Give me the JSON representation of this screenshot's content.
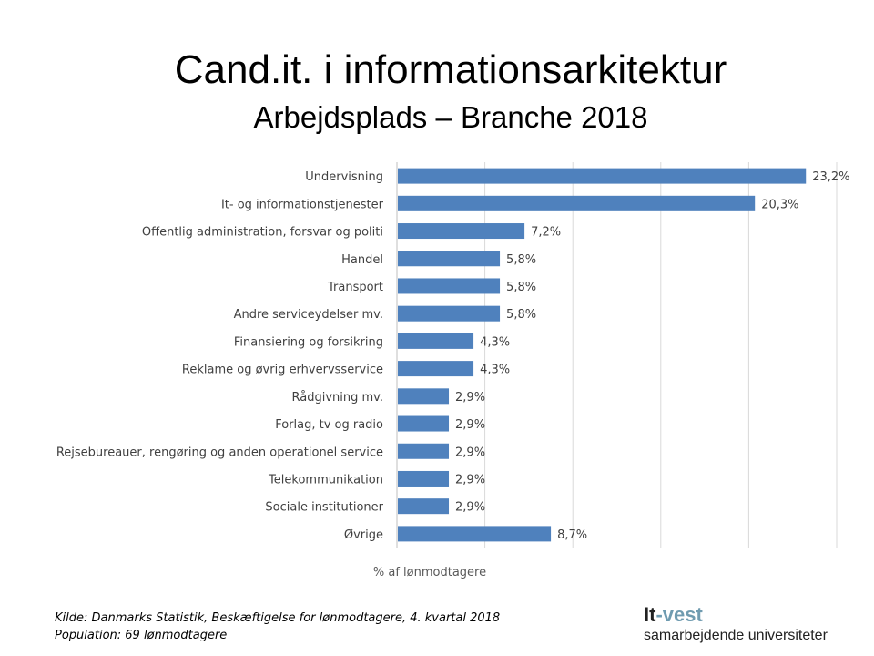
{
  "header": {
    "title": "Cand.it. i informationsarkitektur",
    "subtitle": "Arbejdsplads – Branche 2018"
  },
  "chart_data": {
    "type": "bar",
    "orientation": "horizontal",
    "categories": [
      "Undervisning",
      "It- og informationstjenester",
      "Offentlig administration, forsvar og politi",
      "Handel",
      "Transport",
      "Andre serviceydelser  mv.",
      "Finansiering og forsikring",
      "Reklame og øvrig erhvervsservice",
      "Rådgivning mv.",
      "Forlag, tv og radio",
      "Rejsebureauer, rengøring og anden operationel service",
      "Telekommunikation",
      "Sociale institutioner",
      "Øvrige"
    ],
    "values": [
      23.2,
      20.3,
      7.2,
      5.8,
      5.8,
      5.8,
      4.3,
      4.3,
      2.9,
      2.9,
      2.9,
      2.9,
      2.9,
      8.7
    ],
    "data_labels": [
      "23,2%",
      "20,3%",
      "7,2%",
      "5,8%",
      "5,8%",
      "5,8%",
      "4,3%",
      "4,3%",
      "2,9%",
      "2,9%",
      "2,9%",
      "2,9%",
      "2,9%",
      "8,7%"
    ],
    "xlabel": "% af lønmodtagere",
    "xlim": [
      0,
      25
    ],
    "x_gridline_step": 5,
    "grid": true,
    "x_tick_labels_shown": false,
    "bar_color": "#4F81BD",
    "gridline_color": "#D9D9D9"
  },
  "footer": {
    "source": "Kilde: Danmarks Statistik, Beskæftigelse for lønmodtagere, 4. kvartal 2018",
    "population": "Population: 69 lønmodtagere"
  },
  "logo": {
    "name_part1": "It",
    "name_part2": "-vest",
    "tagline": "samarbejdende universiteter"
  }
}
